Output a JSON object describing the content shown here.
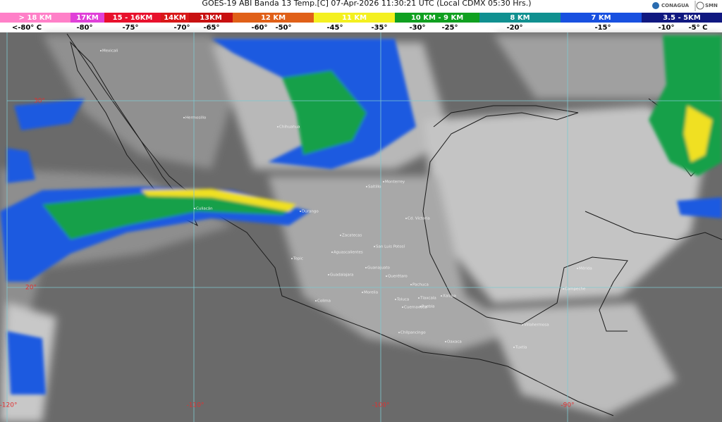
{
  "header": {
    "title": "GOES-19 ABI Banda 13 Temp.[C] 07-Apr-2026 11:30:21 UTC (Local CDMX  05:30 Hrs.)",
    "logos": [
      "CONAGUA",
      "SMN"
    ]
  },
  "legend": {
    "bands": [
      {
        "label": "> 18 KM",
        "color": "#ff80c8"
      },
      {
        "label": "17KM",
        "color": "#e040d8"
      },
      {
        "label": "15 - 16KM",
        "color": "#e8102c"
      },
      {
        "label": "14KM",
        "color": "#d81818"
      },
      {
        "label": "13KM",
        "color": "#c81010"
      },
      {
        "label": "12 KM",
        "color": "#e06018"
      },
      {
        "label": "11 KM",
        "color": "#f4f020"
      },
      {
        "label": "10 KM - 9 KM",
        "color": "#10a020"
      },
      {
        "label": "8 KM",
        "color": "#109090"
      },
      {
        "label": "7 KM",
        "color": "#1850e0"
      },
      {
        "label": "3.5 - 5KM",
        "color": "#101880"
      }
    ],
    "temperatures": [
      "<-80° C",
      "-80°",
      "-75°",
      "-70°",
      "-65°",
      "-60°",
      "-50°",
      "-45°",
      "-35°",
      "-30°",
      "-25°",
      "-20°",
      "-15°",
      "-10°",
      "-5° C"
    ]
  },
  "map": {
    "grid_labels": [
      "30°",
      "20°",
      "-120°",
      "-110°",
      "-100°",
      "-90°"
    ],
    "cities": [
      "Mexicali",
      "Hermosillo",
      "Chihuahua",
      "Culiacán",
      "Durango",
      "Saltillo",
      "Monterrey",
      "Cd. Victoria",
      "Zacatecas",
      "San Luis Potosí",
      "Aguascalientes",
      "Tepic",
      "Guadalajara",
      "Guanajuato",
      "Querétaro",
      "Pachuca",
      "Morelia",
      "Colima",
      "Toluca",
      "Tlaxcala",
      "Puebla",
      "Xalapa",
      "Cuernavaca",
      "Chilpancingo",
      "Oaxaca",
      "Villahermosa",
      "Tuxtla",
      "Mérida",
      "Campeche"
    ]
  }
}
